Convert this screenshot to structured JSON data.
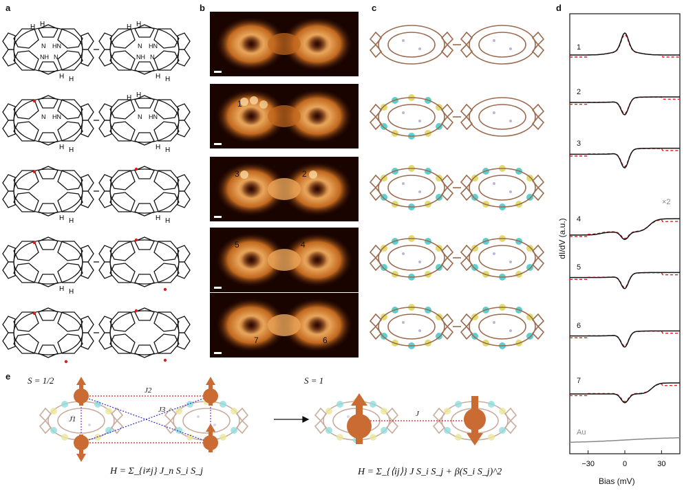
{
  "panels": {
    "a": "a",
    "b": "b",
    "c": "c",
    "d": "d",
    "e": "e"
  },
  "panel_b": {
    "site_labels": [
      {
        "n": "1"
      },
      {
        "n": "3"
      },
      {
        "n": "2"
      },
      {
        "n": "5"
      },
      {
        "n": "4"
      },
      {
        "n": "7"
      },
      {
        "n": "6"
      }
    ]
  },
  "panel_d": {
    "ylabel": "dI/dV (a.u.)",
    "xlabel": "Bias (mV)",
    "xticks": [
      "−30",
      "0",
      "30"
    ],
    "magnification": "×2",
    "curve_labels": [
      "1",
      "2",
      "3",
      "4",
      "5",
      "6",
      "7",
      "Au"
    ],
    "colors": {
      "experiment": "#111111",
      "fit": "#e21b1b",
      "au": "#888888"
    }
  },
  "panel_e": {
    "left_spin": "S = 1/2",
    "right_spin": "S = 1",
    "couplings": [
      "J1",
      "J2",
      "J3"
    ],
    "coupling_right": "J",
    "hamiltonian_left": "H = Σ_{i≠j} J_n S_i S_j",
    "hamiltonian_right": "H = Σ_{⟨ij⟩} J S_i S_j + β(S_i S_j)^2"
  },
  "chart_data": {
    "type": "line",
    "title": "",
    "xlabel": "Bias (mV)",
    "ylabel": "dI/dV (a.u.)",
    "xlim": [
      -45,
      45
    ],
    "xticks": [
      -30,
      0,
      30
    ],
    "series": [
      {
        "name": "1",
        "kind": "peak",
        "amplitude": 1.0
      },
      {
        "name": "2",
        "kind": "dip",
        "amplitude": 1.0
      },
      {
        "name": "3",
        "kind": "dip",
        "amplitude": 1.1
      },
      {
        "name": "4",
        "kind": "step",
        "amplitude": 0.9
      },
      {
        "name": "5",
        "kind": "dip",
        "amplitude": 0.9
      },
      {
        "name": "6",
        "kind": "dip",
        "amplitude": 0.9
      },
      {
        "name": "7",
        "kind": "step-dip",
        "amplitude": 0.8
      },
      {
        "name": "Au",
        "kind": "flat",
        "amplitude": 0.05
      }
    ]
  }
}
